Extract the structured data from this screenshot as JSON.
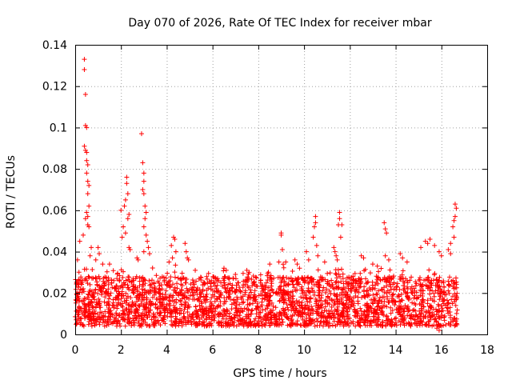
{
  "chart_data": {
    "type": "scatter",
    "title": "Day 070 of 2026, Rate Of TEC Index for receiver mbar",
    "xlabel": "GPS time / hours",
    "ylabel": "ROTI / TECUs",
    "xlim": [
      0,
      18
    ],
    "ylim": [
      0,
      0.14
    ],
    "x_ticks": [
      0,
      2,
      4,
      6,
      8,
      10,
      12,
      14,
      16,
      18
    ],
    "x_tick_labels": [
      "0",
      "2",
      "4",
      "6",
      "8",
      "10",
      "12",
      "14",
      "16",
      "18"
    ],
    "y_ticks": [
      0,
      0.02,
      0.04,
      0.06,
      0.08,
      0.1,
      0.12,
      0.14
    ],
    "y_tick_labels": [
      "0",
      "0.02",
      "0.04",
      "0.06",
      "0.08",
      "0.1",
      "0.12",
      "0.14"
    ],
    "grid": true,
    "marker": "+",
    "marker_color": "#ff0000",
    "data_x_range": [
      0,
      16.7
    ],
    "series": [
      {
        "name": "ROTI",
        "points": [
          [
            0.4,
            0.133
          ],
          [
            0.4,
            0.128
          ],
          [
            0.45,
            0.116
          ],
          [
            0.45,
            0.101
          ],
          [
            0.5,
            0.1
          ],
          [
            0.4,
            0.091
          ],
          [
            0.45,
            0.089
          ],
          [
            0.5,
            0.088
          ],
          [
            0.5,
            0.084
          ],
          [
            0.55,
            0.082
          ],
          [
            0.5,
            0.078
          ],
          [
            0.55,
            0.074
          ],
          [
            0.6,
            0.072
          ],
          [
            0.55,
            0.068
          ],
          [
            0.6,
            0.062
          ],
          [
            0.5,
            0.059
          ],
          [
            0.55,
            0.057
          ],
          [
            0.45,
            0.056
          ],
          [
            0.55,
            0.053
          ],
          [
            0.6,
            0.052
          ],
          [
            0.35,
            0.048
          ],
          [
            0.1,
            0.036
          ],
          [
            0.2,
            0.045
          ],
          [
            0.7,
            0.042
          ],
          [
            0.65,
            0.038
          ],
          [
            1.0,
            0.042
          ],
          [
            1.05,
            0.039
          ],
          [
            0.9,
            0.036
          ],
          [
            1.2,
            0.034
          ],
          [
            2.0,
            0.06
          ],
          [
            2.1,
            0.052
          ],
          [
            2.2,
            0.065
          ],
          [
            2.25,
            0.073
          ],
          [
            2.25,
            0.076
          ],
          [
            2.3,
            0.068
          ],
          [
            2.35,
            0.058
          ],
          [
            2.3,
            0.056
          ],
          [
            2.2,
            0.049
          ],
          [
            2.35,
            0.042
          ],
          [
            1.5,
            0.034
          ],
          [
            2.4,
            0.041
          ],
          [
            2.05,
            0.047
          ],
          [
            2.15,
            0.062
          ],
          [
            2.9,
            0.097
          ],
          [
            2.95,
            0.083
          ],
          [
            3.0,
            0.078
          ],
          [
            3.0,
            0.074
          ],
          [
            2.95,
            0.07
          ],
          [
            3.0,
            0.068
          ],
          [
            3.05,
            0.062
          ],
          [
            3.1,
            0.059
          ],
          [
            3.05,
            0.056
          ],
          [
            3.0,
            0.052
          ],
          [
            3.1,
            0.048
          ],
          [
            3.15,
            0.045
          ],
          [
            3.2,
            0.042
          ],
          [
            3.0,
            0.04
          ],
          [
            3.25,
            0.039
          ],
          [
            2.7,
            0.037
          ],
          [
            2.75,
            0.036
          ],
          [
            4.3,
            0.047
          ],
          [
            4.35,
            0.046
          ],
          [
            4.2,
            0.043
          ],
          [
            4.4,
            0.04
          ],
          [
            4.25,
            0.037
          ],
          [
            4.1,
            0.035
          ],
          [
            4.8,
            0.044
          ],
          [
            4.85,
            0.04
          ],
          [
            4.9,
            0.037
          ],
          [
            4.95,
            0.036
          ],
          [
            6.5,
            0.032
          ],
          [
            6.6,
            0.031
          ],
          [
            7.0,
            0.029
          ],
          [
            7.5,
            0.031
          ],
          [
            7.6,
            0.03
          ],
          [
            8.5,
            0.034
          ],
          [
            8.9,
            0.035
          ],
          [
            9.0,
            0.048
          ],
          [
            9.0,
            0.049
          ],
          [
            9.05,
            0.041
          ],
          [
            9.2,
            0.035
          ],
          [
            9.6,
            0.036
          ],
          [
            9.7,
            0.034
          ],
          [
            9.8,
            0.032
          ],
          [
            10.1,
            0.04
          ],
          [
            10.2,
            0.036
          ],
          [
            10.4,
            0.047
          ],
          [
            10.45,
            0.052
          ],
          [
            10.5,
            0.054
          ],
          [
            10.5,
            0.057
          ],
          [
            10.55,
            0.043
          ],
          [
            10.6,
            0.038
          ],
          [
            10.9,
            0.035
          ],
          [
            11.3,
            0.042
          ],
          [
            11.35,
            0.04
          ],
          [
            11.4,
            0.038
          ],
          [
            11.5,
            0.053
          ],
          [
            11.55,
            0.056
          ],
          [
            11.55,
            0.059
          ],
          [
            11.6,
            0.047
          ],
          [
            11.65,
            0.053
          ],
          [
            11.45,
            0.036
          ],
          [
            12.5,
            0.038
          ],
          [
            12.6,
            0.037
          ],
          [
            13.0,
            0.034
          ],
          [
            13.2,
            0.033
          ],
          [
            13.5,
            0.054
          ],
          [
            13.55,
            0.051
          ],
          [
            13.6,
            0.049
          ],
          [
            13.55,
            0.038
          ],
          [
            13.7,
            0.036
          ],
          [
            14.2,
            0.039
          ],
          [
            14.3,
            0.037
          ],
          [
            14.5,
            0.035
          ],
          [
            15.1,
            0.042
          ],
          [
            15.3,
            0.045
          ],
          [
            15.4,
            0.044
          ],
          [
            15.5,
            0.046
          ],
          [
            15.7,
            0.043
          ],
          [
            15.9,
            0.04
          ],
          [
            16.0,
            0.038
          ],
          [
            16.3,
            0.041
          ],
          [
            16.4,
            0.044
          ],
          [
            16.5,
            0.052
          ],
          [
            16.55,
            0.055
          ],
          [
            16.6,
            0.057
          ],
          [
            16.6,
            0.063
          ],
          [
            16.65,
            0.061
          ],
          [
            16.55,
            0.047
          ],
          [
            16.4,
            0.039
          ],
          [
            15.8,
            0.003
          ],
          [
            15.9,
            0.002
          ],
          [
            16.0,
            0.004
          ]
        ]
      }
    ],
    "dense_band": {
      "description": "dense cloud of + markers between x=0 and x=16.7",
      "y_min": 0.004,
      "y_typical_max": 0.028
    }
  }
}
